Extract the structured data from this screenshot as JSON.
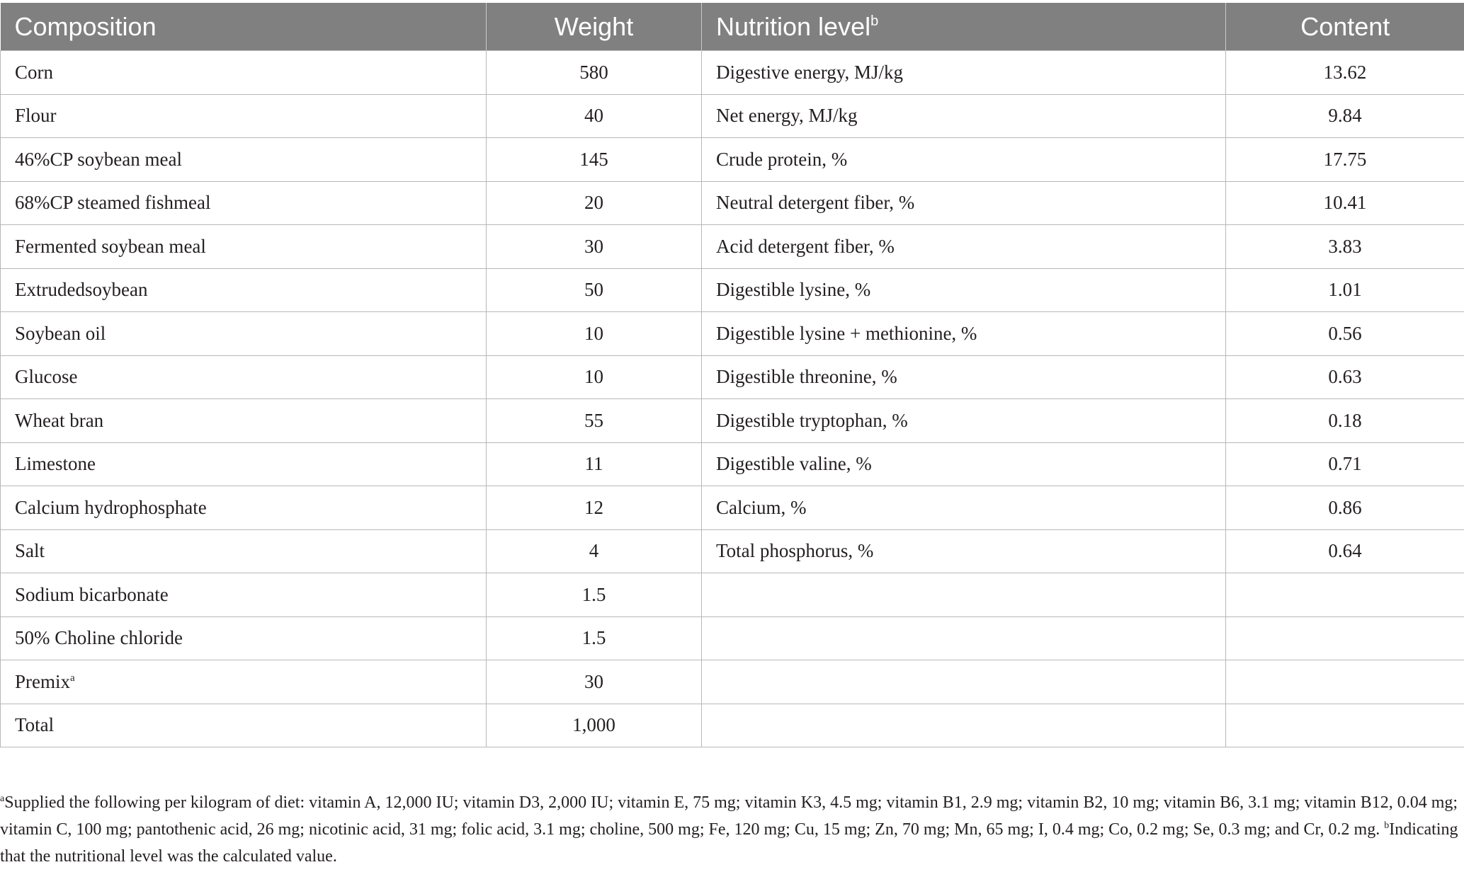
{
  "headers": {
    "composition": "Composition",
    "weight": "Weight",
    "nutrition_level": "Nutrition level",
    "nutrition_level_mark": "b",
    "content": "Content"
  },
  "rows": [
    {
      "composition": "Corn",
      "weight": "580",
      "nutrition": "Digestive energy, MJ/kg",
      "content": "13.62"
    },
    {
      "composition": "Flour",
      "weight": "40",
      "nutrition": "Net energy, MJ/kg",
      "content": "9.84"
    },
    {
      "composition": "46%CP soybean meal",
      "weight": "145",
      "nutrition": "Crude protein, %",
      "content": "17.75"
    },
    {
      "composition": "68%CP steamed fishmeal",
      "weight": "20",
      "nutrition": "Neutral detergent fiber, %",
      "content": "10.41"
    },
    {
      "composition": "Fermented soybean meal",
      "weight": "30",
      "nutrition": "Acid detergent fiber, %",
      "content": "3.83"
    },
    {
      "composition": "Extrudedsoybean",
      "weight": "50",
      "nutrition": "Digestible lysine, %",
      "content": "1.01"
    },
    {
      "composition": "Soybean oil",
      "weight": "10",
      "nutrition": "Digestible lysine + methionine, %",
      "content": "0.56"
    },
    {
      "composition": "Glucose",
      "weight": "10",
      "nutrition": "Digestible threonine, %",
      "content": "0.63"
    },
    {
      "composition": "Wheat bran",
      "weight": "55",
      "nutrition": "Digestible tryptophan, %",
      "content": "0.18"
    },
    {
      "composition": "Limestone",
      "weight": "11",
      "nutrition": "Digestible valine, %",
      "content": "0.71"
    },
    {
      "composition": "Calcium hydrophosphate",
      "weight": "12",
      "nutrition": "Calcium, %",
      "content": "0.86"
    },
    {
      "composition": "Salt",
      "weight": "4",
      "nutrition": "Total phosphorus, %",
      "content": "0.64"
    },
    {
      "composition": "Sodium bicarbonate",
      "weight": "1.5",
      "nutrition": "",
      "content": ""
    },
    {
      "composition": "50% Choline chloride",
      "weight": "1.5",
      "nutrition": "",
      "content": ""
    },
    {
      "composition": "Premix",
      "composition_mark": "a",
      "weight": "30",
      "nutrition": "",
      "content": ""
    },
    {
      "composition": "Total",
      "weight": "1,000",
      "nutrition": "",
      "content": ""
    }
  ],
  "footnote": {
    "mark_a": "a",
    "line_a": "Supplied the following per kilogram of diet: vitamin A, 12,000 IU; vitamin D3, 2,000 IU; vitamin E, 75 mg; vitamin K3, 4.5 mg; vitamin B1, 2.9 mg; vitamin B2, 10 mg; vitamin B6, 3.1 mg; vitamin B12, 0.04 mg; vitamin C, 100 mg; pantothenic acid, 26 mg; nicotinic acid, 31 mg; folic acid, 3.1 mg; choline, 500 mg; Fe, 120 mg; Cu, 15 mg; Zn, 70 mg; Mn, 65 mg; I, 0.4 mg; Co, 0.2 mg; Se, 0.3 mg; and Cr, 0.2 mg.",
    "mark_b": "b",
    "line_b": "Indicating that the nutritional level was the calculated value."
  }
}
